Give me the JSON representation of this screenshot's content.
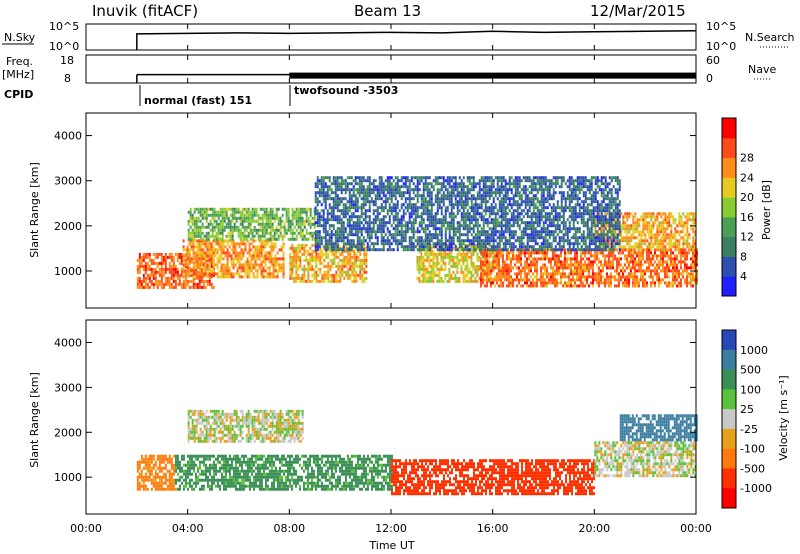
{
  "header": {
    "station": "Inuvik (fitACF)",
    "beam": "Beam 13",
    "date": "12/Mar/2015"
  },
  "nsky_panel": {
    "left_label": "N.Sky",
    "right_label": "N.Search",
    "left_ticks": [
      "10^5",
      "10^0"
    ],
    "right_ticks": [
      "10^5",
      "10^0"
    ]
  },
  "freq_panel": {
    "left_label_line1": "Freq.",
    "left_label_line2": "[MHz]",
    "right_label": "Nave",
    "left_ticks": [
      "18",
      "8"
    ],
    "right_ticks": [
      "60",
      "0"
    ]
  },
  "cpid": {
    "label": "CPID",
    "segments": [
      {
        "start_hour": 2.0,
        "text": "normal (fast) 151"
      },
      {
        "start_hour": 8.0,
        "text": "twofsound -3503"
      }
    ]
  },
  "time_axis": {
    "label": "Time UT",
    "ticks": [
      "00:00",
      "04:00",
      "08:00",
      "12:00",
      "16:00",
      "20:00",
      "00:00"
    ]
  },
  "range_axis": {
    "label": "Slant Range [km]",
    "ticks": [
      "1000",
      "2000",
      "3000",
      "4000"
    ]
  },
  "power_scale": {
    "label": "Power [dB]",
    "ticks": [
      "4",
      "8",
      "12",
      "16",
      "20",
      "24",
      "28"
    ],
    "colors": [
      "#1f1fff",
      "#2e4fb0",
      "#3a7f60",
      "#4aa055",
      "#88cc33",
      "#e6cc22",
      "#ff8c1a",
      "#ff4a1a",
      "#ff0000"
    ]
  },
  "velocity_scale": {
    "label": "Velocity [m s⁻¹]",
    "ticks": [
      "1000",
      "500",
      "100",
      "25",
      "-25",
      "-100",
      "-500",
      "-1000"
    ],
    "colors": [
      "#2848b8",
      "#3c7ea0",
      "#3a8f55",
      "#59c23a",
      "#c8c8c8",
      "#e6a01a",
      "#ff7a0a",
      "#ff3000",
      "#ff0000"
    ]
  },
  "chart_data": {
    "type": "heatmap",
    "x_range_hours": [
      0,
      24
    ],
    "y_range_km": [
      180,
      4500
    ],
    "data_start_hour": 2.0,
    "nsky": {
      "x": [
        2.0,
        4.0,
        6.0,
        8.0,
        10.0,
        12.0,
        14.0,
        16.0,
        18.0,
        20.0,
        22.0,
        24.0
      ],
      "y_log10": [
        3.1,
        3.2,
        3.3,
        3.2,
        3.3,
        3.4,
        3.3,
        3.6,
        3.4,
        3.5,
        3.6,
        3.7
      ]
    },
    "freq_mhz": {
      "x": [
        2.0,
        8.0,
        24.0
      ],
      "y": [
        11.0,
        11.0,
        11.0
      ]
    },
    "power_panel_bands": [
      {
        "start_hour": 2.0,
        "end_hour": 5.0,
        "range_km": [
          650,
          1400
        ],
        "power_db": 29
      },
      {
        "start_hour": 3.8,
        "end_hour": 7.8,
        "range_km": [
          900,
          1700
        ],
        "power_db": 25
      },
      {
        "start_hour": 4.0,
        "end_hour": 9.0,
        "range_km": [
          1700,
          2400
        ],
        "power_db": 16
      },
      {
        "start_hour": 8.0,
        "end_hour": 11.0,
        "range_km": [
          800,
          1600
        ],
        "power_db": 24
      },
      {
        "start_hour": 13.0,
        "end_hour": 16.0,
        "range_km": [
          800,
          1600
        ],
        "power_db": 22
      },
      {
        "start_hour": 15.5,
        "end_hour": 24.0,
        "range_km": [
          700,
          1500
        ],
        "power_db": 28
      },
      {
        "start_hour": 20.0,
        "end_hour": 24.0,
        "range_km": [
          1500,
          2300
        ],
        "power_db": 24
      },
      {
        "start_hour": 9.0,
        "end_hour": 21.0,
        "range_km": [
          1500,
          3100
        ],
        "power_db": 8
      }
    ],
    "velocity_panel_bands": [
      {
        "start_hour": 2.0,
        "end_hour": 3.5,
        "range_km": [
          700,
          1500
        ],
        "velocity_ms": -100
      },
      {
        "start_hour": 3.5,
        "end_hour": 12.0,
        "range_km": [
          700,
          1500
        ],
        "velocity_ms": 100
      },
      {
        "start_hour": 4.0,
        "end_hour": 8.5,
        "range_km": [
          1800,
          2500
        ],
        "velocity_ms": 0
      },
      {
        "start_hour": 12.0,
        "end_hour": 20.0,
        "range_km": [
          600,
          1400
        ],
        "velocity_ms": -500
      },
      {
        "start_hour": 20.0,
        "end_hour": 24.0,
        "range_km": [
          1000,
          1800
        ],
        "velocity_ms": 0
      },
      {
        "start_hour": 21.0,
        "end_hour": 24.0,
        "range_km": [
          1800,
          2400
        ],
        "velocity_ms": 500
      }
    ]
  }
}
